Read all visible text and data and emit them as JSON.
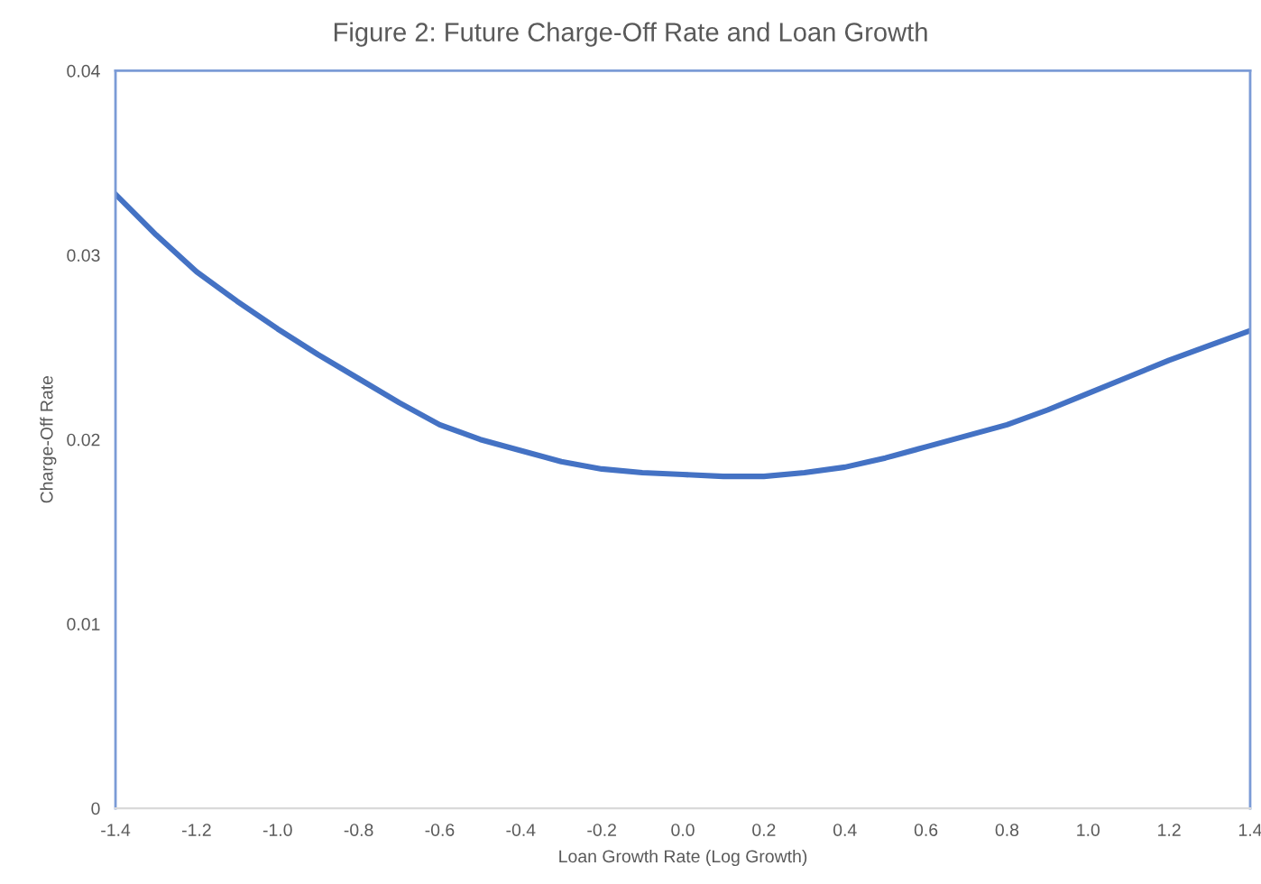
{
  "chart_data": {
    "type": "line",
    "title": "Figure 2: Future Charge-Off Rate and Loan Growth",
    "xlabel": "Loan Growth Rate (Log Growth)",
    "ylabel": "Charge-Off Rate",
    "x": [
      -1.4,
      -1.3,
      -1.2,
      -1.1,
      -1.0,
      -0.9,
      -0.8,
      -0.7,
      -0.6,
      -0.5,
      -0.4,
      -0.3,
      -0.2,
      -0.1,
      0.0,
      0.1,
      0.2,
      0.3,
      0.4,
      0.5,
      0.6,
      0.7,
      0.8,
      0.9,
      1.0,
      1.1,
      1.2,
      1.3,
      1.4
    ],
    "series": [
      {
        "color": "#4472c4",
        "values": [
          0.0333,
          0.0311,
          0.0291,
          0.0275,
          0.026,
          0.0246,
          0.0233,
          0.022,
          0.0208,
          0.02,
          0.0194,
          0.0188,
          0.0184,
          0.0182,
          0.0181,
          0.018,
          0.018,
          0.0182,
          0.0185,
          0.019,
          0.0196,
          0.0202,
          0.0208,
          0.0216,
          0.0225,
          0.0234,
          0.0243,
          0.0251,
          0.0259
        ]
      }
    ],
    "xlim": [
      -1.4,
      1.4
    ],
    "ylim": [
      0,
      0.04
    ],
    "xticks": [
      -1.4,
      -1.2,
      {
        "value": -1.0,
        "label": "-1.0"
      },
      -0.8,
      -0.6,
      -0.4,
      -0.2,
      {
        "value": 0.0,
        "label": "0.0"
      },
      0.2,
      0.4,
      0.6,
      0.8,
      {
        "value": 1.0,
        "label": "1.0"
      },
      1.2,
      1.4
    ],
    "yticks": [
      0,
      0.01,
      0.02,
      0.03,
      0.04
    ],
    "grid": false,
    "marker": "none",
    "line_style": "solid"
  }
}
